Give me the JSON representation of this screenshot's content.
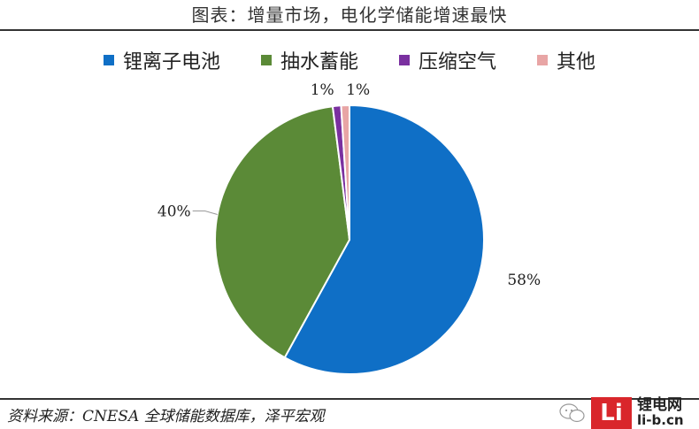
{
  "header": {
    "title": "图表：增量市场，电化学储能增速最快"
  },
  "chart_data": {
    "type": "pie",
    "title": "",
    "categories": [
      "锂离子电池",
      "抽水蓄能",
      "压缩空气",
      "其他"
    ],
    "values": [
      58,
      40,
      1,
      1
    ],
    "value_labels": [
      "58%",
      "40%",
      "1%",
      "1%"
    ],
    "colors": [
      "#0f6fc6",
      "#5b8a37",
      "#7a30a0",
      "#e8a5a5"
    ],
    "legend_position": "top",
    "start_angle_deg": 0,
    "direction": "clockwise",
    "slice_border": "#ffffff"
  },
  "footer": {
    "source": "资料来源：CNESA 全球储能数据库，泽平宏观",
    "watermark": {
      "logo_letters": "Li",
      "site_cn": "锂电网",
      "site_url": "li-b.cn"
    }
  }
}
